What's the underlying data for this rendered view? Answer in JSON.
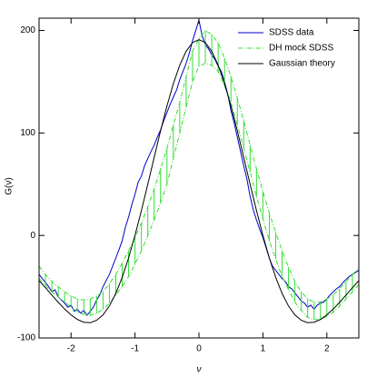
{
  "chart_data": {
    "type": "line",
    "xlabel": "ν",
    "ylabel": "G(ν)",
    "xlim": [
      -2.5,
      2.5
    ],
    "ylim": [
      -100,
      212
    ],
    "xticks": [
      -2,
      -1,
      0,
      1,
      2
    ],
    "yticks": [
      -100,
      0,
      100,
      200
    ],
    "legend": "upper right",
    "series": [
      {
        "name": "SDSS data",
        "color": "#0000cc",
        "x": [
          -2.5,
          -2.45,
          -2.4,
          -2.35,
          -2.3,
          -2.25,
          -2.2,
          -2.15,
          -2.1,
          -2.05,
          -2.0,
          -1.95,
          -1.9,
          -1.85,
          -1.8,
          -1.75,
          -1.7,
          -1.65,
          -1.6,
          -1.55,
          -1.5,
          -1.45,
          -1.4,
          -1.35,
          -1.3,
          -1.25,
          -1.2,
          -1.15,
          -1.1,
          -1.05,
          -1.0,
          -0.95,
          -0.9,
          -0.85,
          -0.8,
          -0.75,
          -0.7,
          -0.65,
          -0.6,
          -0.55,
          -0.5,
          -0.45,
          -0.4,
          -0.35,
          -0.3,
          -0.25,
          -0.2,
          -0.15,
          -0.1,
          -0.05,
          0,
          0.05,
          0.1,
          0.15,
          0.2,
          0.25,
          0.3,
          0.35,
          0.4,
          0.45,
          0.5,
          0.55,
          0.6,
          0.65,
          0.7,
          0.75,
          0.8,
          0.85,
          0.9,
          0.95,
          1.0,
          1.05,
          1.1,
          1.15,
          1.2,
          1.25,
          1.3,
          1.35,
          1.4,
          1.45,
          1.5,
          1.55,
          1.6,
          1.65,
          1.7,
          1.75,
          1.8,
          1.85,
          1.9,
          1.95,
          2.0,
          2.05,
          2.1,
          2.15,
          2.2,
          2.25,
          2.3,
          2.35,
          2.4,
          2.45,
          2.5
        ],
        "values": [
          -38,
          -42,
          -46,
          -50,
          -55,
          -53,
          -60,
          -63,
          -66,
          -70,
          -68,
          -74,
          -72,
          -76,
          -73,
          -78,
          -74,
          -70,
          -63,
          -58,
          -50,
          -44,
          -38,
          -30,
          -22,
          -14,
          -5,
          8,
          18,
          30,
          40,
          52,
          58,
          68,
          75,
          82,
          88,
          96,
          103,
          112,
          120,
          128,
          135,
          142,
          152,
          160,
          168,
          178,
          190,
          200,
          210,
          195,
          186,
          182,
          176,
          172,
          165,
          160,
          150,
          138,
          122,
          110,
          96,
          82,
          68,
          55,
          38,
          25,
          15,
          6,
          -2,
          -12,
          -22,
          -30,
          -34,
          -38,
          -42,
          -45,
          -50,
          -52,
          -56,
          -60,
          -64,
          -66,
          -70,
          -68,
          -72,
          -68,
          -66,
          -65,
          -62,
          -58,
          -55,
          -52,
          -50,
          -46,
          -43,
          -40,
          -38,
          -36,
          -34
        ]
      },
      {
        "name": "DH mock SDSS",
        "color": "#33dd33",
        "x": [
          -2.5,
          -2.4,
          -2.3,
          -2.2,
          -2.1,
          -2.0,
          -1.9,
          -1.8,
          -1.7,
          -1.6,
          -1.5,
          -1.4,
          -1.3,
          -1.2,
          -1.1,
          -1.0,
          -0.9,
          -0.8,
          -0.7,
          -0.6,
          -0.5,
          -0.4,
          -0.3,
          -0.2,
          -0.1,
          0,
          0.1,
          0.2,
          0.3,
          0.4,
          0.5,
          0.6,
          0.7,
          0.8,
          0.9,
          1.0,
          1.1,
          1.2,
          1.3,
          1.4,
          1.5,
          1.6,
          1.7,
          1.8,
          1.9,
          2.0,
          2.1,
          2.2,
          2.3,
          2.4,
          2.5
        ],
        "upper": [
          -30,
          -38,
          -45,
          -50,
          -55,
          -59,
          -62,
          -63,
          -62,
          -59,
          -55,
          -47,
          -38,
          -27,
          -15,
          -2,
          12,
          28,
          45,
          65,
          85,
          108,
          130,
          155,
          180,
          192,
          200,
          196,
          188,
          173,
          155,
          134,
          112,
          88,
          65,
          43,
          22,
          3,
          -15,
          -31,
          -45,
          -55,
          -62,
          -65,
          -65,
          -62,
          -58,
          -52,
          -45,
          -38,
          -32
        ],
        "lower": [
          -42,
          -49,
          -55,
          -60,
          -65,
          -70,
          -75,
          -77,
          -78,
          -76,
          -72,
          -66,
          -58,
          -50,
          -40,
          -28,
          -15,
          0,
          15,
          32,
          50,
          75,
          100,
          125,
          150,
          165,
          168,
          166,
          160,
          146,
          130,
          108,
          85,
          62,
          38,
          16,
          -5,
          -23,
          -40,
          -53,
          -65,
          -73,
          -80,
          -82,
          -82,
          -79,
          -75,
          -69,
          -62,
          -55,
          -48
        ]
      },
      {
        "name": "Gaussian theory",
        "color": "#000000",
        "x": [
          -2.5,
          -2.4,
          -2.3,
          -2.2,
          -2.1,
          -2.0,
          -1.9,
          -1.8,
          -1.7,
          -1.6,
          -1.5,
          -1.4,
          -1.3,
          -1.2,
          -1.1,
          -1.0,
          -0.9,
          -0.8,
          -0.7,
          -0.6,
          -0.5,
          -0.4,
          -0.3,
          -0.2,
          -0.1,
          0,
          0.1,
          0.2,
          0.3,
          0.4,
          0.5,
          0.6,
          0.7,
          0.8,
          0.9,
          1.0,
          1.1,
          1.2,
          1.3,
          1.4,
          1.5,
          1.6,
          1.7,
          1.8,
          1.9,
          2.0,
          2.1,
          2.2,
          2.3,
          2.4,
          2.5
        ],
        "values": [
          -44,
          -51,
          -58.2,
          -65.2,
          -71.8,
          -77.5,
          -82,
          -84.7,
          -85.1,
          -82.8,
          -77.5,
          -68.8,
          -56.6,
          -40.9,
          -21.9,
          0,
          24.2,
          49.9,
          76.2,
          102.1,
          126.4,
          148.1,
          166.2,
          179.7,
          188.2,
          191,
          188.2,
          179.7,
          166.2,
          148.1,
          126.4,
          102.1,
          76.2,
          49.9,
          24.2,
          0,
          -21.9,
          -40.9,
          -56.6,
          -68.8,
          -77.5,
          -82.8,
          -85.1,
          -84.7,
          -82,
          -77.5,
          -71.8,
          -65.2,
          -58.2,
          -51,
          -44
        ]
      }
    ]
  }
}
